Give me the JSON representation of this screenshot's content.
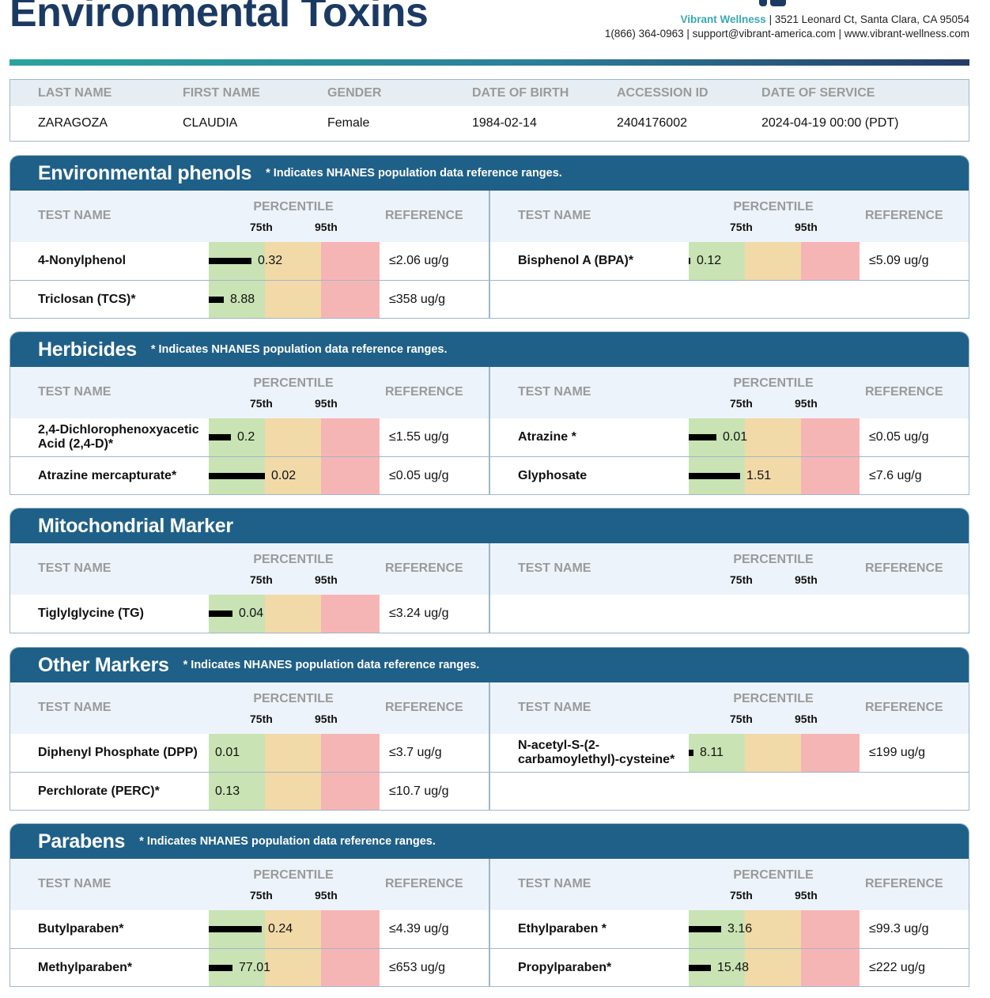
{
  "header": {
    "title": "Environmental Toxins",
    "brand": "Vibrant Wellness",
    "address": " | 3521 Leonard Ct, Santa Clara, CA 95054",
    "contact_line": "1(866) 364-0963 | support@vibrant-america.com | www.vibrant-wellness.com"
  },
  "patient": {
    "headers": [
      "LAST NAME",
      "FIRST NAME",
      "GENDER",
      "DATE OF BIRTH",
      "ACCESSION ID",
      "DATE OF SERVICE"
    ],
    "values": [
      "ZARAGOZA",
      "CLAUDIA",
      "Female",
      "1984-02-14",
      "2404176002",
      "2024-04-19 00:00 (PDT)"
    ]
  },
  "table_labels": {
    "test_name": "TEST NAME",
    "percentile": "PERCENTILE",
    "p75": "75th",
    "p95": "95th",
    "reference": "REFERENCE"
  },
  "sections": [
    {
      "title": "Environmental phenols",
      "note": "* Indicates NHANES population data reference ranges.",
      "left": [
        {
          "name": "4-Nonylphenol",
          "value": "0.32",
          "percent_fill": 0.25,
          "reference": "≤2.06 ug/g"
        },
        {
          "name": "Triclosan (TCS)*",
          "value": "8.88",
          "percent_fill": 0.09,
          "reference": "≤358 ug/g"
        }
      ],
      "right": [
        {
          "name": "Bisphenol A (BPA)*",
          "value": "0.12",
          "percent_fill": 0.01,
          "reference": "≤5.09 ug/g"
        }
      ]
    },
    {
      "title": "Herbicides",
      "note": "* Indicates NHANES population data reference ranges.",
      "left": [
        {
          "name": "2,4-Dichlorophenoxyacetic Acid (2,4-D)*",
          "value": "0.2",
          "percent_fill": 0.13,
          "reference": "≤1.55 ug/g"
        },
        {
          "name": "Atrazine mercapturate*",
          "value": "0.02",
          "percent_fill": 0.33,
          "reference": "≤0.05 ug/g"
        }
      ],
      "right": [
        {
          "name": "Atrazine *",
          "value": "0.01",
          "percent_fill": 0.16,
          "reference": "≤0.05 ug/g"
        },
        {
          "name": "Glyphosate",
          "value": "1.51",
          "percent_fill": 0.3,
          "reference": "≤7.6 ug/g"
        }
      ]
    },
    {
      "title": "Mitochondrial Marker",
      "note": "",
      "left": [
        {
          "name": "Tiglylglycine (TG)",
          "value": "0.04",
          "percent_fill": 0.14,
          "reference": "≤3.24 ug/g"
        }
      ],
      "right": []
    },
    {
      "title": "Other Markers",
      "note": "* Indicates NHANES population data reference ranges.",
      "left": [
        {
          "name": "Diphenyl Phosphate (DPP)",
          "value": "0.01",
          "percent_fill": 0.0,
          "reference": "≤3.7 ug/g"
        },
        {
          "name": "Perchlorate (PERC)*",
          "value": "0.13",
          "percent_fill": 0.0,
          "reference": "≤10.7 ug/g"
        }
      ],
      "right": [
        {
          "name": "N-acetyl-S-(2-carbamoylethyl)-cysteine*",
          "value": "8.11",
          "percent_fill": 0.03,
          "reference": "≤199 ug/g"
        }
      ]
    },
    {
      "title": "Parabens",
      "note": "* Indicates NHANES population data reference ranges.",
      "left": [
        {
          "name": "Butylparaben*",
          "value": "0.24",
          "percent_fill": 0.31,
          "reference": "≤4.39 ug/g"
        },
        {
          "name": "Methylparaben*",
          "value": "77.01",
          "percent_fill": 0.14,
          "reference": "≤653 ug/g"
        }
      ],
      "right": [
        {
          "name": "Ethylparaben *",
          "value": "3.16",
          "percent_fill": 0.19,
          "reference": "≤99.3 ug/g"
        },
        {
          "name": "Propylparaben*",
          "value": "15.48",
          "percent_fill": 0.13,
          "reference": "≤222 ug/g"
        }
      ]
    }
  ],
  "colors": {
    "section_header": "#1f6088",
    "title": "#1b3a63",
    "brand": "#3aa8b3",
    "zone_green": "#c9e3b4",
    "zone_yellow": "#f2d9a8",
    "zone_red": "#f6b5b5"
  }
}
